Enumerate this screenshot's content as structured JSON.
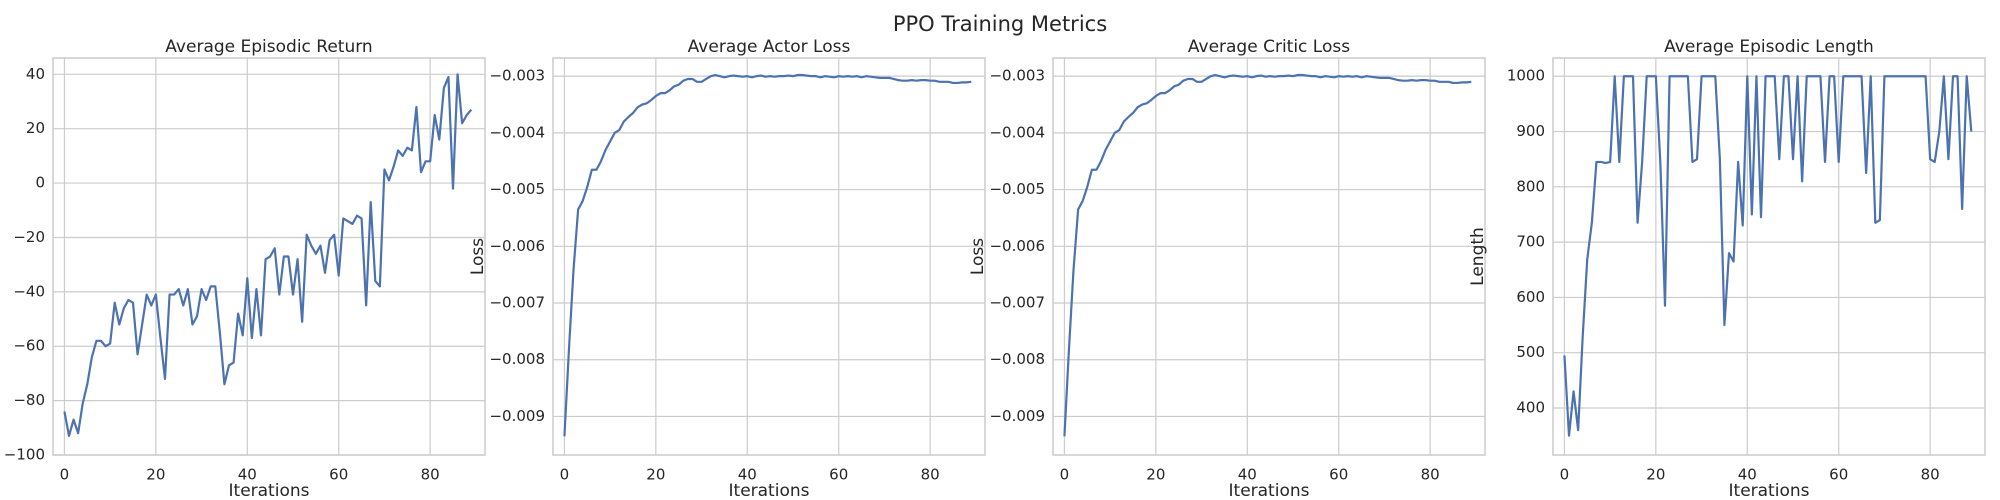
{
  "suptitle": "PPO Training Metrics",
  "chart_data": [
    {
      "type": "line",
      "title": "Average Episodic Return",
      "xlabel": "Iterations",
      "ylabel": "",
      "xlim": [
        -2.5,
        92
      ],
      "ylim": [
        -100,
        46
      ],
      "xticks": [
        0,
        20,
        40,
        60,
        80
      ],
      "yticks": [
        -100,
        -80,
        -60,
        -40,
        -20,
        0,
        20,
        40
      ],
      "grid": true,
      "series": [
        {
          "name": "",
          "color": "#4c72b0",
          "x": [
            0,
            1,
            2,
            3,
            4,
            5,
            6,
            7,
            8,
            9,
            10,
            11,
            12,
            13,
            14,
            15,
            16,
            17,
            18,
            19,
            20,
            21,
            22,
            23,
            24,
            25,
            26,
            27,
            28,
            29,
            30,
            31,
            32,
            33,
            34,
            35,
            36,
            37,
            38,
            39,
            40,
            41,
            42,
            43,
            44,
            45,
            46,
            47,
            48,
            49,
            50,
            51,
            52,
            53,
            54,
            55,
            56,
            57,
            58,
            59,
            60,
            61,
            62,
            63,
            64,
            65,
            66,
            67,
            68,
            69,
            70,
            71,
            72,
            73,
            74,
            75,
            76,
            77,
            78,
            79,
            80,
            81,
            82,
            83,
            84,
            85,
            86,
            87,
            88,
            89
          ],
          "y": [
            -84,
            -93,
            -87,
            -92,
            -81,
            -74,
            -64,
            -58,
            -58,
            -60,
            -59,
            -44,
            -52,
            -46,
            -43,
            -44,
            -63,
            -52,
            -41,
            -45,
            -41,
            -57,
            -72,
            -41,
            -41,
            -39,
            -45,
            -39,
            -52,
            -49,
            -39,
            -43,
            -38,
            -38,
            -55,
            -74,
            -67,
            -66,
            -48,
            -56,
            -35,
            -57,
            -39,
            -56,
            -28,
            -27,
            -24,
            -41,
            -27,
            -27,
            -41,
            -28,
            -51,
            -19,
            -23,
            -26,
            -23,
            -33,
            -21,
            -19,
            -34,
            -13,
            -14,
            -15,
            -12,
            -13,
            -45,
            -7,
            -36,
            -38,
            5,
            1,
            6,
            12,
            10,
            13,
            12,
            28,
            4,
            8,
            8,
            25,
            16,
            35,
            39,
            -2,
            40,
            22,
            25,
            27
          ]
        }
      ]
    },
    {
      "type": "line",
      "title": "Average Actor Loss",
      "xlabel": "Iterations",
      "ylabel": "Loss",
      "xlim": [
        -2.5,
        92
      ],
      "ylim": [
        -0.00968,
        -0.00268
      ],
      "xticks": [
        0,
        20,
        40,
        60,
        80
      ],
      "yticks": [
        -0.009,
        -0.008,
        -0.007,
        -0.006,
        -0.005,
        -0.004,
        -0.003
      ],
      "ytick_labels": [
        "−0.009",
        "−0.008",
        "−0.007",
        "−0.006",
        "−0.005",
        "−0.004",
        "−0.003"
      ],
      "grid": true,
      "series": [
        {
          "name": "",
          "color": "#4c72b0",
          "x": [
            0,
            1,
            2,
            3,
            4,
            5,
            6,
            7,
            8,
            9,
            10,
            11,
            12,
            13,
            14,
            15,
            16,
            17,
            18,
            19,
            20,
            21,
            22,
            23,
            24,
            25,
            26,
            27,
            28,
            29,
            30,
            31,
            32,
            33,
            34,
            35,
            36,
            37,
            38,
            39,
            40,
            41,
            42,
            43,
            44,
            45,
            46,
            47,
            48,
            49,
            50,
            51,
            52,
            53,
            54,
            55,
            56,
            57,
            58,
            59,
            60,
            61,
            62,
            63,
            64,
            65,
            66,
            67,
            68,
            69,
            70,
            71,
            72,
            73,
            74,
            75,
            76,
            77,
            78,
            79,
            80,
            81,
            82,
            83,
            84,
            85,
            86,
            87,
            88,
            89
          ],
          "y": [
            -0.00935,
            -0.0078,
            -0.0064,
            -0.00535,
            -0.0052,
            -0.00495,
            -0.00465,
            -0.00465,
            -0.0045,
            -0.0043,
            -0.00415,
            -0.004,
            -0.00395,
            -0.0038,
            -0.00372,
            -0.00365,
            -0.00355,
            -0.0035,
            -0.00348,
            -0.00342,
            -0.00335,
            -0.0033,
            -0.0033,
            -0.00325,
            -0.00318,
            -0.00315,
            -0.00308,
            -0.00305,
            -0.00305,
            -0.0031,
            -0.0031,
            -0.00305,
            -0.003,
            -0.00298,
            -0.003,
            -0.00302,
            -0.003,
            -0.00299,
            -0.003,
            -0.00301,
            -0.003,
            -0.00302,
            -0.003,
            -0.00299,
            -0.00301,
            -0.003,
            -0.00301,
            -0.003,
            -0.003,
            -0.00299,
            -0.003,
            -0.00298,
            -0.00298,
            -0.00299,
            -0.003,
            -0.003,
            -0.00302,
            -0.003,
            -0.00301,
            -0.00302,
            -0.003,
            -0.00301,
            -0.003,
            -0.00301,
            -0.003,
            -0.00302,
            -0.003,
            -0.00301,
            -0.00302,
            -0.00303,
            -0.00303,
            -0.00303,
            -0.00305,
            -0.00307,
            -0.00308,
            -0.00308,
            -0.00307,
            -0.00308,
            -0.00307,
            -0.00307,
            -0.00308,
            -0.00308,
            -0.0031,
            -0.0031,
            -0.0031,
            -0.00312,
            -0.00312,
            -0.00311,
            -0.00311,
            -0.0031
          ]
        }
      ]
    },
    {
      "type": "line",
      "title": "Average Critic Loss",
      "xlabel": "Iterations",
      "ylabel": "Loss",
      "xlim": [
        -2.5,
        92
      ],
      "ylim": [
        -0.00968,
        -0.00268
      ],
      "xticks": [
        0,
        20,
        40,
        60,
        80
      ],
      "yticks": [
        -0.009,
        -0.008,
        -0.007,
        -0.006,
        -0.005,
        -0.004,
        -0.003
      ],
      "ytick_labels": [
        "−0.009",
        "−0.008",
        "−0.007",
        "−0.006",
        "−0.005",
        "−0.004",
        "−0.003"
      ],
      "grid": true,
      "series": [
        {
          "name": "",
          "color": "#4c72b0",
          "x": [
            0,
            1,
            2,
            3,
            4,
            5,
            6,
            7,
            8,
            9,
            10,
            11,
            12,
            13,
            14,
            15,
            16,
            17,
            18,
            19,
            20,
            21,
            22,
            23,
            24,
            25,
            26,
            27,
            28,
            29,
            30,
            31,
            32,
            33,
            34,
            35,
            36,
            37,
            38,
            39,
            40,
            41,
            42,
            43,
            44,
            45,
            46,
            47,
            48,
            49,
            50,
            51,
            52,
            53,
            54,
            55,
            56,
            57,
            58,
            59,
            60,
            61,
            62,
            63,
            64,
            65,
            66,
            67,
            68,
            69,
            70,
            71,
            72,
            73,
            74,
            75,
            76,
            77,
            78,
            79,
            80,
            81,
            82,
            83,
            84,
            85,
            86,
            87,
            88,
            89
          ],
          "y": [
            -0.00935,
            -0.0078,
            -0.0064,
            -0.00535,
            -0.0052,
            -0.00495,
            -0.00465,
            -0.00465,
            -0.0045,
            -0.0043,
            -0.00415,
            -0.004,
            -0.00395,
            -0.0038,
            -0.00372,
            -0.00365,
            -0.00355,
            -0.0035,
            -0.00348,
            -0.00342,
            -0.00335,
            -0.0033,
            -0.0033,
            -0.00325,
            -0.00318,
            -0.00315,
            -0.00308,
            -0.00305,
            -0.00305,
            -0.0031,
            -0.0031,
            -0.00305,
            -0.003,
            -0.00298,
            -0.003,
            -0.00302,
            -0.003,
            -0.00299,
            -0.003,
            -0.00301,
            -0.003,
            -0.00302,
            -0.003,
            -0.00299,
            -0.00301,
            -0.003,
            -0.00301,
            -0.003,
            -0.003,
            -0.00299,
            -0.003,
            -0.00298,
            -0.00298,
            -0.00299,
            -0.003,
            -0.003,
            -0.00302,
            -0.003,
            -0.00301,
            -0.00302,
            -0.003,
            -0.00301,
            -0.003,
            -0.00301,
            -0.003,
            -0.00302,
            -0.003,
            -0.00301,
            -0.00302,
            -0.00303,
            -0.00303,
            -0.00303,
            -0.00305,
            -0.00307,
            -0.00308,
            -0.00308,
            -0.00307,
            -0.00308,
            -0.00307,
            -0.00307,
            -0.00308,
            -0.00308,
            -0.0031,
            -0.0031,
            -0.0031,
            -0.00312,
            -0.00312,
            -0.00311,
            -0.00311,
            -0.0031
          ]
        }
      ]
    },
    {
      "type": "line",
      "title": "Average Episodic Length",
      "xlabel": "Iterations",
      "ylabel": "Length",
      "xlim": [
        -2.5,
        92
      ],
      "ylim": [
        315,
        1033
      ],
      "xticks": [
        0,
        20,
        40,
        60,
        80
      ],
      "yticks": [
        400,
        500,
        600,
        700,
        800,
        900,
        1000
      ],
      "grid": true,
      "series": [
        {
          "name": "",
          "color": "#4c72b0",
          "x": [
            0,
            1,
            2,
            3,
            4,
            5,
            6,
            7,
            8,
            9,
            10,
            11,
            12,
            13,
            14,
            15,
            16,
            17,
            18,
            19,
            20,
            21,
            22,
            23,
            24,
            25,
            26,
            27,
            28,
            29,
            30,
            31,
            32,
            33,
            34,
            35,
            36,
            37,
            38,
            39,
            40,
            41,
            42,
            43,
            44,
            45,
            46,
            47,
            48,
            49,
            50,
            51,
            52,
            53,
            54,
            55,
            56,
            57,
            58,
            59,
            60,
            61,
            62,
            63,
            64,
            65,
            66,
            67,
            68,
            69,
            70,
            71,
            72,
            73,
            74,
            75,
            76,
            77,
            78,
            79,
            80,
            81,
            82,
            83,
            84,
            85,
            86,
            87,
            88,
            89
          ],
          "y": [
            495,
            350,
            430,
            360,
            530,
            670,
            735,
            845,
            845,
            843,
            845,
            1000,
            845,
            1000,
            1000,
            1000,
            735,
            845,
            1000,
            1000,
            1000,
            840,
            585,
            1000,
            1000,
            1000,
            1000,
            1000,
            845,
            850,
            1000,
            1000,
            1000,
            1000,
            850,
            550,
            680,
            665,
            845,
            730,
            1000,
            750,
            1000,
            745,
            1000,
            1000,
            1000,
            850,
            1000,
            1000,
            850,
            1000,
            810,
            1000,
            1000,
            1000,
            1000,
            845,
            1000,
            1000,
            845,
            1000,
            1000,
            1000,
            1000,
            1000,
            825,
            1000,
            735,
            740,
            1000,
            1000,
            1000,
            1000,
            1000,
            1000,
            1000,
            1000,
            1000,
            1000,
            850,
            845,
            900,
            1000,
            850,
            1000,
            1000,
            760,
            1000,
            900
          ]
        }
      ]
    }
  ]
}
